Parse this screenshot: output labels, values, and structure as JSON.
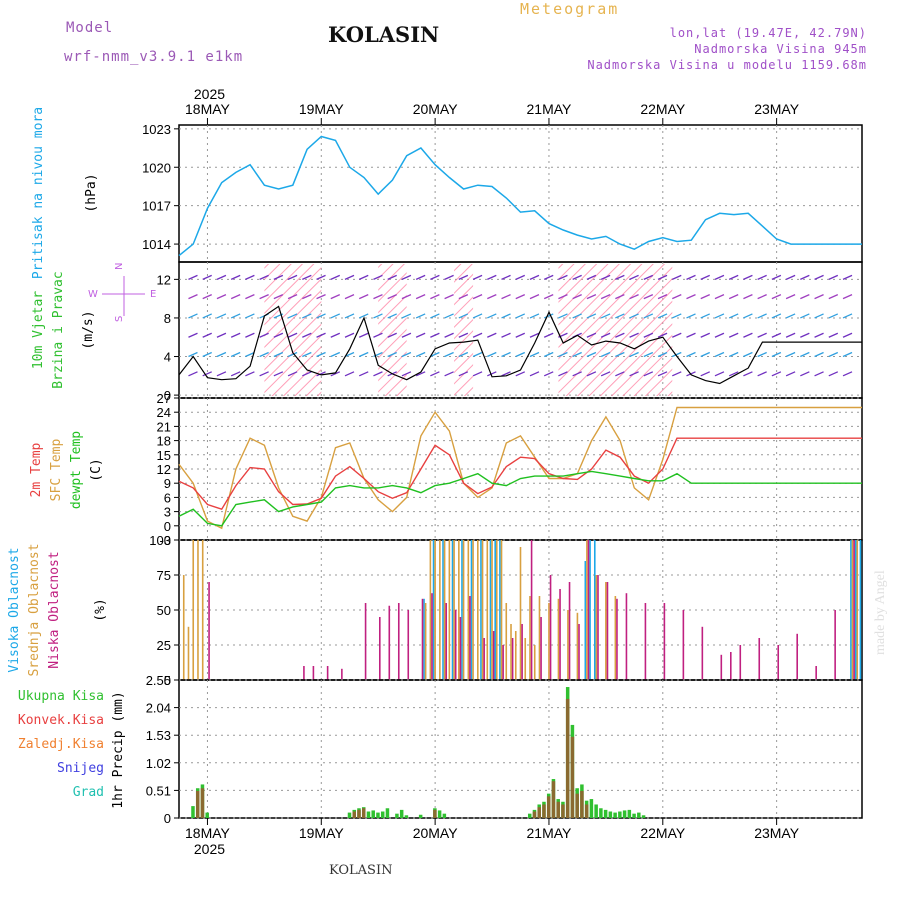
{
  "header": {
    "model_label": "Model",
    "model_name": "wrf-nmm_v3.9.1 e1km",
    "title": "KOLASIN",
    "subtitle": "Meteogram",
    "coords": "lon,lat (19.47E, 42.79N)",
    "elevation": "Nadmorska Visina 945m",
    "model_elevation": "Nadmorska Visina u modelu 1159.68m"
  },
  "footer": {
    "location": "KOLASIN",
    "credit": "made by Angel"
  },
  "colors": {
    "pressure": "#1ca8e8",
    "temp2m": "#e84040",
    "sfc_temp": "#d8a040",
    "dewpoint": "#20c020",
    "high_cloud": "#1ca8e8",
    "mid_cloud": "#d8a040",
    "low_cloud": "#c02080",
    "total_precip": "#30c030",
    "conv_precip": "#e84040",
    "frozen_precip": "#f08030",
    "snow": "#4040e0",
    "hail": "#20c0b0",
    "wind_speed": "#000000"
  },
  "chart_data": [
    {
      "type": "line",
      "panel": "pressure",
      "ylabel": [
        "Pritisak na nivou mora",
        "(hPa)"
      ],
      "yticks": [
        1014,
        1017,
        1020,
        1023
      ],
      "ylim": [
        1012.6,
        1023.3
      ],
      "x_dates": [
        "18MAY",
        "19MAY",
        "20MAY",
        "21MAY",
        "22MAY",
        "23MAY"
      ],
      "top_year": "2025",
      "bottom_year": "2025",
      "x_range_hours": [
        -6,
        138
      ],
      "series": [
        {
          "x": [
            -6,
            -3,
            0,
            3,
            6,
            9,
            12,
            15,
            18,
            21,
            24,
            27,
            30,
            33,
            36,
            39,
            42,
            45,
            48,
            51,
            54,
            57,
            60,
            63,
            66,
            69,
            72,
            75,
            78,
            81,
            84,
            87,
            90,
            93,
            96,
            99,
            102,
            105,
            108,
            111,
            114,
            117,
            120,
            123,
            126,
            129,
            132,
            135,
            138
          ],
          "values": [
            1013.1,
            1014.0,
            1016.8,
            1018.8,
            1019.6,
            1020.2,
            1018.6,
            1018.3,
            1018.6,
            1021.4,
            1022.4,
            1022.1,
            1020.0,
            1019.2,
            1017.9,
            1019.0,
            1020.9,
            1021.5,
            1020.2,
            1019.2,
            1018.3,
            1018.6,
            1018.5,
            1017.6,
            1016.5,
            1016.6,
            1015.6,
            1015.1,
            1014.7,
            1014.4,
            1014.6,
            1014.0,
            1013.6,
            1014.2,
            1014.5,
            1014.2,
            1014.3,
            1015.9,
            1016.4,
            1016.3,
            1016.4,
            1015.4,
            1014.4,
            1014.0,
            1014.0,
            1014.0,
            1014.0,
            1014.0,
            1014.0
          ]
        }
      ]
    },
    {
      "type": "line",
      "panel": "wind",
      "ylabel": [
        "10m Vjetar",
        "Brzina i Pravac",
        "(m/s)"
      ],
      "compass": [
        "N",
        "W",
        "E",
        "S"
      ],
      "yticks": [
        0,
        4,
        8,
        12
      ],
      "ylim": [
        -0.3,
        13.8
      ],
      "series": [
        {
          "name": "wind speed",
          "x": [
            -6,
            -3,
            0,
            3,
            6,
            9,
            12,
            15,
            18,
            21,
            24,
            27,
            30,
            33,
            36,
            39,
            42,
            45,
            48,
            51,
            54,
            57,
            60,
            63,
            66,
            69,
            72,
            75,
            78,
            81,
            84,
            87,
            90,
            93,
            96,
            99,
            102,
            105,
            108,
            111,
            114,
            117,
            120,
            123,
            126,
            129,
            132,
            135,
            138
          ],
          "values": [
            2.1,
            4.0,
            1.8,
            1.6,
            1.7,
            3.0,
            8.2,
            9.2,
            4.4,
            2.6,
            2.1,
            2.3,
            4.8,
            8.0,
            3.1,
            2.2,
            1.6,
            2.4,
            4.8,
            5.4,
            5.5,
            5.7,
            1.9,
            2.0,
            2.6,
            5.4,
            8.6,
            5.4,
            6.2,
            5.2,
            5.6,
            5.4,
            4.8,
            5.6,
            6.0,
            4.0,
            2.1,
            1.5,
            1.2,
            2.0,
            2.8,
            5.5,
            5.5,
            5.5,
            5.5,
            5.5,
            5.5,
            5.5,
            5.5
          ]
        }
      ]
    },
    {
      "type": "line",
      "panel": "temperature",
      "ylabel": [
        "2m Temp",
        "SFC Temp",
        "dewpt Temp",
        "(C)"
      ],
      "yticks": [
        -3,
        0,
        3,
        6,
        9,
        12,
        15,
        18,
        21,
        24,
        27
      ],
      "ylim": [
        -3,
        27
      ],
      "series": [
        {
          "name": "2m Temp",
          "x": [
            -6,
            -3,
            0,
            3,
            6,
            9,
            12,
            15,
            18,
            21,
            24,
            27,
            30,
            33,
            36,
            39,
            42,
            45,
            48,
            51,
            54,
            57,
            60,
            63,
            66,
            69,
            72,
            75,
            78,
            81,
            84,
            87,
            90,
            93,
            96,
            99,
            102,
            105,
            108,
            111,
            114,
            117,
            120,
            123,
            126,
            129,
            132,
            135,
            138
          ],
          "values": [
            9.4,
            8.0,
            4.5,
            3.5,
            8.5,
            12.3,
            12.0,
            7.2,
            4.5,
            4.6,
            5.8,
            10.5,
            12.5,
            10.0,
            7.2,
            5.8,
            7.0,
            12.0,
            17.0,
            15.0,
            9.0,
            6.8,
            8.2,
            12.5,
            14.5,
            14.2,
            11.0,
            10.0,
            9.8,
            12.0,
            16.0,
            14.5,
            10.5,
            9.0,
            12.0,
            18.5,
            18.5,
            18.5,
            18.5,
            18.5,
            18.5,
            18.5,
            18.5,
            18.5,
            18.5,
            18.5,
            18.5,
            18.5,
            18.5
          ]
        },
        {
          "name": "SFC Temp",
          "x": [
            -6,
            -3,
            0,
            3,
            6,
            9,
            12,
            15,
            18,
            21,
            24,
            27,
            30,
            33,
            36,
            39,
            42,
            45,
            48,
            51,
            54,
            57,
            60,
            63,
            66,
            69,
            72,
            75,
            78,
            81,
            84,
            87,
            90,
            93,
            96,
            99,
            102,
            105,
            108,
            111,
            114,
            117,
            120,
            123,
            126,
            129,
            132,
            135,
            138
          ],
          "values": [
            13.0,
            9.0,
            1.0,
            -0.5,
            12.0,
            18.5,
            17.0,
            8.0,
            2.0,
            1.0,
            6.0,
            16.5,
            17.5,
            10.0,
            5.5,
            3.0,
            6.0,
            19.0,
            24.0,
            20.0,
            9.0,
            6.0,
            8.0,
            17.5,
            19.0,
            14.5,
            10.0,
            10.0,
            11.0,
            18.0,
            23.0,
            18.0,
            8.0,
            5.5,
            14.0,
            25.0,
            25.0,
            25.0,
            25.0,
            25.0,
            25.0,
            25.0,
            25.0,
            25.0,
            25.0,
            25.0,
            25.0,
            25.0,
            25.0
          ]
        },
        {
          "name": "dewpt Temp",
          "x": [
            -6,
            -3,
            0,
            3,
            6,
            9,
            12,
            15,
            18,
            21,
            24,
            27,
            30,
            33,
            36,
            39,
            42,
            45,
            48,
            51,
            54,
            57,
            60,
            63,
            66,
            69,
            72,
            75,
            78,
            81,
            84,
            87,
            90,
            93,
            96,
            99,
            102,
            105,
            108,
            111,
            114,
            117,
            120,
            123,
            126,
            129,
            132,
            135,
            138
          ],
          "values": [
            2.0,
            3.5,
            0.5,
            0.0,
            4.5,
            5.0,
            5.5,
            3.0,
            4.0,
            4.5,
            5.0,
            8.0,
            8.5,
            8.0,
            8.0,
            8.5,
            8.0,
            7.0,
            8.5,
            9.0,
            10.0,
            11.0,
            9.0,
            8.5,
            10.0,
            10.5,
            10.5,
            10.5,
            11.0,
            11.5,
            11.0,
            10.5,
            10.0,
            9.5,
            9.5,
            11.0,
            9.0,
            9.0,
            9.0,
            9.0,
            9.0,
            9.0,
            9.0,
            9.0,
            9.0,
            9.0,
            9.0,
            9.0,
            9.0
          ]
        }
      ]
    },
    {
      "type": "bar",
      "panel": "cloud",
      "ylabel": [
        "Visoka Oblacnost",
        "Srednja Oblacnost",
        "Niska Oblacnost",
        "(%)"
      ],
      "yticks": [
        0,
        25,
        50,
        75,
        100
      ],
      "ylim": [
        0,
        100
      ],
      "series": [
        {
          "name": "Visoka Oblacnost",
          "x": [
            46,
            48,
            50,
            52,
            54,
            56,
            58,
            60,
            61,
            62,
            80,
            81,
            82,
            136,
            137,
            138
          ],
          "values": [
            58,
            100,
            100,
            100,
            100,
            100,
            100,
            100,
            100,
            100,
            85,
            100,
            100,
            100,
            100,
            100
          ]
        },
        {
          "name": "Srednja Oblacnost",
          "x": [
            -5,
            -4,
            -3,
            -2,
            -1,
            46,
            47,
            48,
            49,
            50,
            51,
            52,
            53,
            54,
            55,
            56,
            57,
            58,
            59,
            60,
            61,
            62,
            63,
            64,
            65,
            66,
            67,
            68,
            69,
            70,
            72,
            74,
            76,
            78,
            80,
            82,
            84,
            86,
            136,
            137
          ],
          "values": [
            75,
            38,
            100,
            100,
            100,
            55,
            100,
            100,
            100,
            100,
            100,
            100,
            100,
            100,
            100,
            100,
            100,
            100,
            100,
            100,
            100,
            100,
            55,
            40,
            35,
            95,
            30,
            60,
            25,
            60,
            55,
            58,
            50,
            48,
            100,
            75,
            70,
            60,
            100,
            100
          ]
        },
        {
          "name": "Niska Oblacnost",
          "x": [
            0,
            20,
            22,
            25,
            28,
            33,
            36,
            38,
            40,
            42,
            45,
            47,
            50,
            52,
            53,
            55,
            58,
            60,
            62,
            64,
            66,
            68,
            70,
            72,
            74,
            76,
            78,
            80,
            82,
            84,
            86,
            88,
            92,
            96,
            100,
            104,
            108,
            110,
            112,
            116,
            120,
            124,
            128,
            132,
            136
          ],
          "values": [
            70,
            10,
            10,
            10,
            8,
            55,
            45,
            53,
            55,
            50,
            58,
            62,
            55,
            50,
            45,
            60,
            30,
            35,
            25,
            30,
            40,
            100,
            45,
            75,
            65,
            70,
            40,
            100,
            75,
            70,
            58,
            62,
            55,
            55,
            50,
            38,
            18,
            20,
            25,
            30,
            25,
            33,
            10,
            50,
            100
          ]
        }
      ]
    },
    {
      "type": "bar",
      "panel": "precip",
      "ylabel": [
        "1hr Precip (mm)"
      ],
      "legend": [
        "Ukupna Kisa",
        "Konvek.Kisa",
        "Zaledj.Kisa",
        "Snijeg",
        "Grad"
      ],
      "yticks": [
        0,
        0.51,
        1.02,
        1.53,
        2.04,
        2.55
      ],
      "ylim": [
        0,
        2.55
      ],
      "series": [
        {
          "name": "Ukupna Kisa",
          "x": [
            -3,
            -2,
            -1,
            0,
            30,
            31,
            32,
            33,
            34,
            35,
            36,
            37,
            38,
            40,
            41,
            42,
            45,
            48,
            49,
            50,
            68,
            69,
            70,
            71,
            72,
            73,
            74,
            75,
            76,
            77,
            78,
            79,
            80,
            81,
            82,
            83,
            84,
            85,
            86,
            87,
            88,
            89,
            90,
            91,
            92
          ],
          "values": [
            0.22,
            0.55,
            0.62,
            0.1,
            0.1,
            0.15,
            0.18,
            0.2,
            0.12,
            0.14,
            0.1,
            0.12,
            0.18,
            0.08,
            0.15,
            0.05,
            0.06,
            0.18,
            0.14,
            0.08,
            0.08,
            0.15,
            0.25,
            0.3,
            0.45,
            0.72,
            0.35,
            0.3,
            2.42,
            1.72,
            0.55,
            0.62,
            0.32,
            0.35,
            0.25,
            0.18,
            0.15,
            0.12,
            0.1,
            0.12,
            0.14,
            0.15,
            0.08,
            0.1,
            0.05
          ]
        },
        {
          "name": "Konvek.Kisa",
          "x": [
            -2,
            -1,
            31,
            32,
            33,
            48,
            69,
            70,
            71,
            72,
            73,
            74,
            75,
            76,
            77,
            78,
            79,
            80
          ],
          "values": [
            0.5,
            0.55,
            0.12,
            0.15,
            0.18,
            0.15,
            0.12,
            0.2,
            0.25,
            0.4,
            0.68,
            0.3,
            0.25,
            2.2,
            1.5,
            0.45,
            0.5,
            0.25
          ]
        }
      ]
    }
  ]
}
